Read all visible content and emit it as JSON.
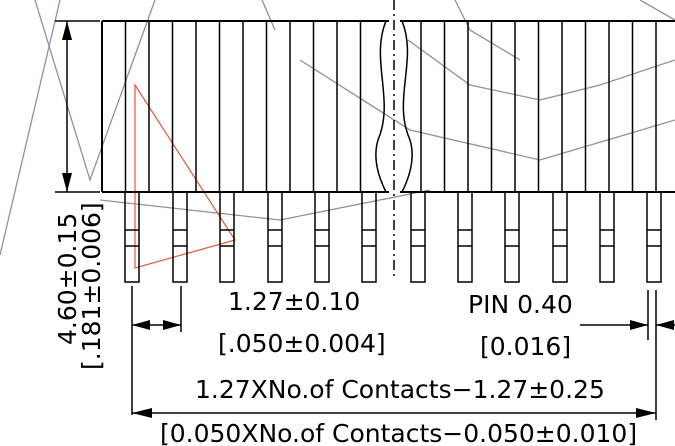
{
  "dimensions": {
    "height_mm": "4.60±0.15",
    "height_in": "[.181±0.006]",
    "pitch_mm": "1.27±0.10",
    "pitch_in": "[.050±0.004]",
    "pin_mm": "PIN 0.40",
    "pin_in": "[0.016]",
    "length_mm": "1.27XNo.of Contacts−1.27±0.25",
    "length_in": "[0.050XNo.of Contacts−0.050±0.010]"
  },
  "colors": {
    "ink": "#000000",
    "watermark": "#8f8fa8",
    "accent": "#e05a3a"
  }
}
